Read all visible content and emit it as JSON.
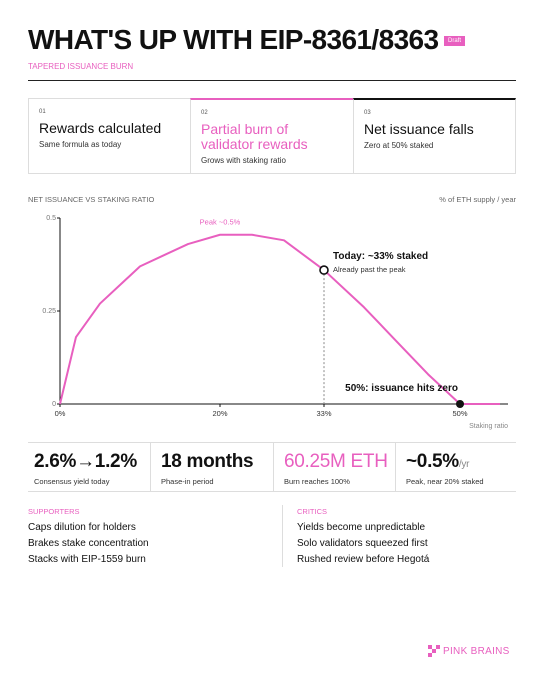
{
  "header": {
    "title": "WHAT'S UP WITH EIP-8361/8363",
    "badge": "Draft",
    "subtitle": "TAPERED ISSUANCE BURN"
  },
  "steps": [
    {
      "number": "01",
      "title": "Rewards calculated",
      "text": "Same formula as today"
    },
    {
      "number": "02",
      "title": "Partial burn of validator rewards",
      "text": "Grows with staking ratio"
    },
    {
      "number": "03",
      "title": "Net issuance falls",
      "text": "Zero at 50% staked"
    }
  ],
  "chart_data": {
    "type": "line",
    "title": "NET ISSUANCE VS STAKING RATIO",
    "y_label": "% of ETH supply / year",
    "x_label": "Staking ratio",
    "color": "#e85fbf",
    "x": [
      0,
      2,
      5,
      8,
      10,
      13,
      16,
      20,
      24,
      28,
      33,
      38,
      42,
      46,
      50,
      55
    ],
    "series": [
      {
        "name": "Net issuance",
        "color": "#e85fbf",
        "values": [
          0,
          0.18,
          0.27,
          0.33,
          0.37,
          0.4,
          0.43,
          0.455,
          0.455,
          0.44,
          0.36,
          0.26,
          0.17,
          0.08,
          0,
          0
        ]
      }
    ],
    "xlim": [
      0,
      56
    ],
    "ylim": [
      0,
      0.5
    ],
    "xticks": [
      {
        "value": 0,
        "label": "0%"
      },
      {
        "value": 20,
        "label": "20%"
      },
      {
        "value": 33,
        "label": "33%"
      },
      {
        "value": 50,
        "label": "50%"
      }
    ],
    "yticks": [
      0,
      0.25,
      0.5
    ],
    "markers": [
      {
        "x": 33,
        "y": 0.36,
        "label": "Today: ~33% staked",
        "note": "Already past the peak"
      },
      {
        "x": 50,
        "y": 0,
        "label": "50%: issuance hits zero"
      }
    ],
    "peak_label": {
      "x": 20,
      "y": 0.455,
      "text": "Peak ~0.5%"
    }
  },
  "stats": [
    {
      "value": "2.6%→1.2%",
      "text": "Consensus yield today"
    },
    {
      "value": "18 months",
      "text": "Phase-in period"
    },
    {
      "value": "60.25M ETH",
      "text": "Burn reaches 100%"
    },
    {
      "value": "~0.5%",
      "unit": "/yr",
      "text": "Peak, near 20% staked"
    }
  ],
  "supporters": {
    "title": "SUPPORTERS",
    "items": [
      "Caps dilution for holders",
      "Brakes stake concentration",
      "Stacks with EIP-1559 burn"
    ]
  },
  "critics": {
    "title": "CRITICS",
    "items": [
      "Yields become unpredictable",
      "Solo validators squeezed first",
      "Rushed review before Hegotá"
    ]
  },
  "brand": "PINK BRAINS"
}
